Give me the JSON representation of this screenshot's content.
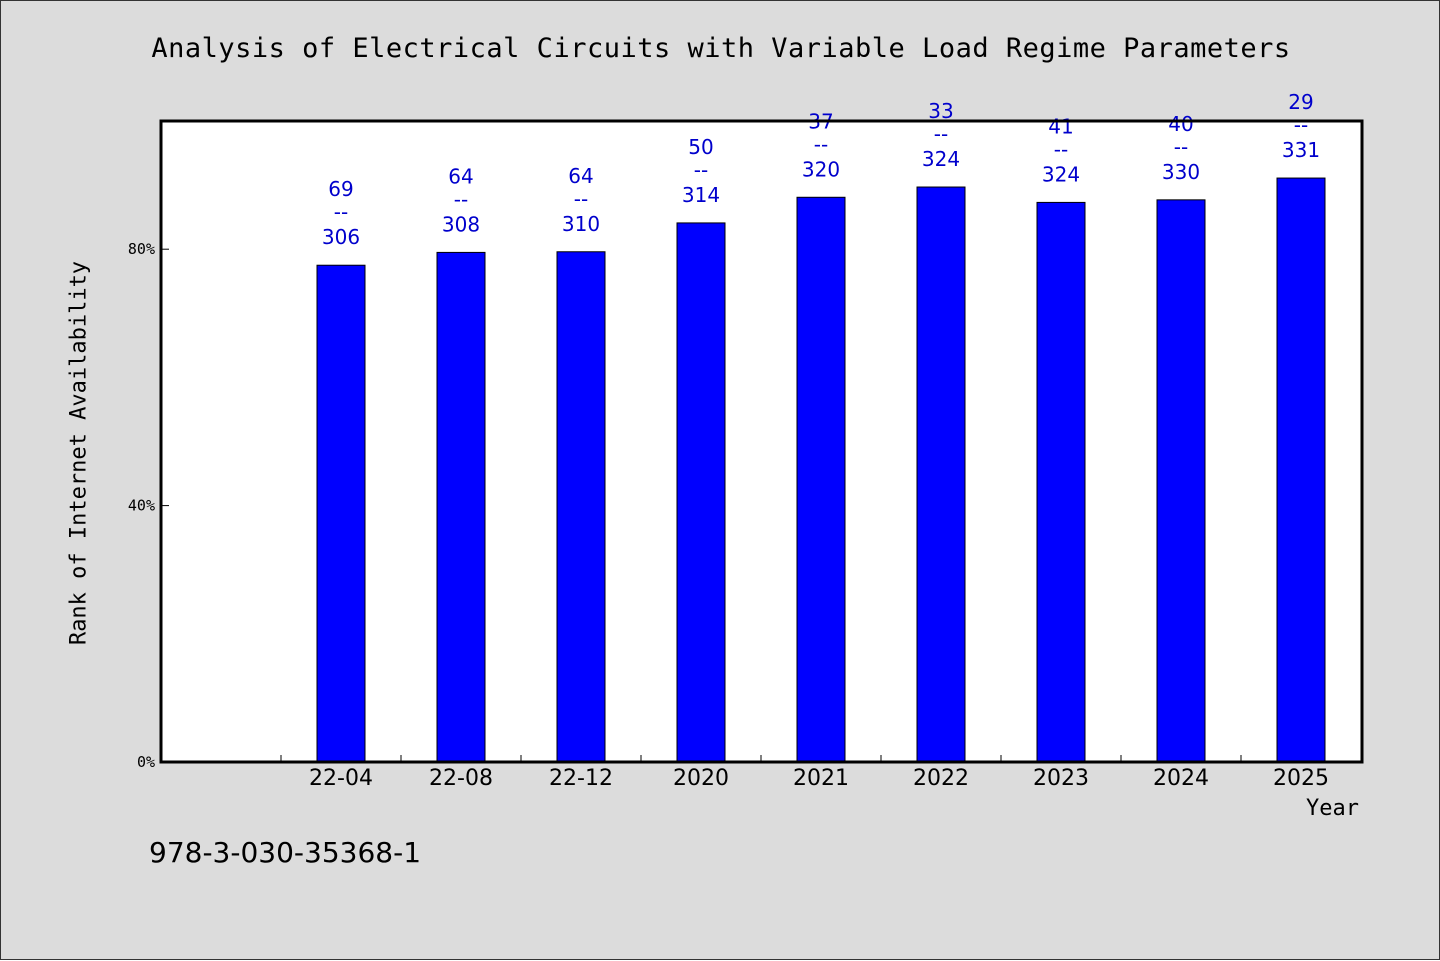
{
  "isbn_text": "978-3-030-35368-1",
  "colors": {
    "background": "#dcdcdc",
    "plot_area": "#ffffff",
    "bar": "#0000ff",
    "data_label": "#0000cc"
  },
  "chart_data": {
    "type": "bar",
    "title": "Analysis of Electrical Circuits with Variable Load Regime Parameters",
    "xlabel": "Year",
    "ylabel": "Rank of Internet Availability",
    "categories": [
      "22-04",
      "22-08",
      "22-12",
      "2020",
      "2021",
      "2022",
      "2023",
      "2024",
      "2025"
    ],
    "values": [
      77.5,
      79.5,
      79.6,
      84.1,
      88.1,
      89.7,
      87.3,
      87.7,
      91.1
    ],
    "data_labels": [
      {
        "top": "69",
        "sep": "--",
        "bottom": "306"
      },
      {
        "top": "64",
        "sep": "--",
        "bottom": "308"
      },
      {
        "top": "64",
        "sep": "--",
        "bottom": "310"
      },
      {
        "top": "50",
        "sep": "--",
        "bottom": "314"
      },
      {
        "top": "37",
        "sep": "--",
        "bottom": "320"
      },
      {
        "top": "33",
        "sep": "--",
        "bottom": "324"
      },
      {
        "top": "41",
        "sep": "--",
        "bottom": "324"
      },
      {
        "top": "40",
        "sep": "--",
        "bottom": "330"
      },
      {
        "top": "29",
        "sep": "--",
        "bottom": "331"
      }
    ],
    "ylim": [
      0,
      100
    ],
    "yticks": [
      {
        "value": 0,
        "label": "0%"
      },
      {
        "value": 40,
        "label": "40%"
      },
      {
        "value": 80,
        "label": "80%"
      }
    ],
    "grid": false,
    "legend": "none"
  }
}
